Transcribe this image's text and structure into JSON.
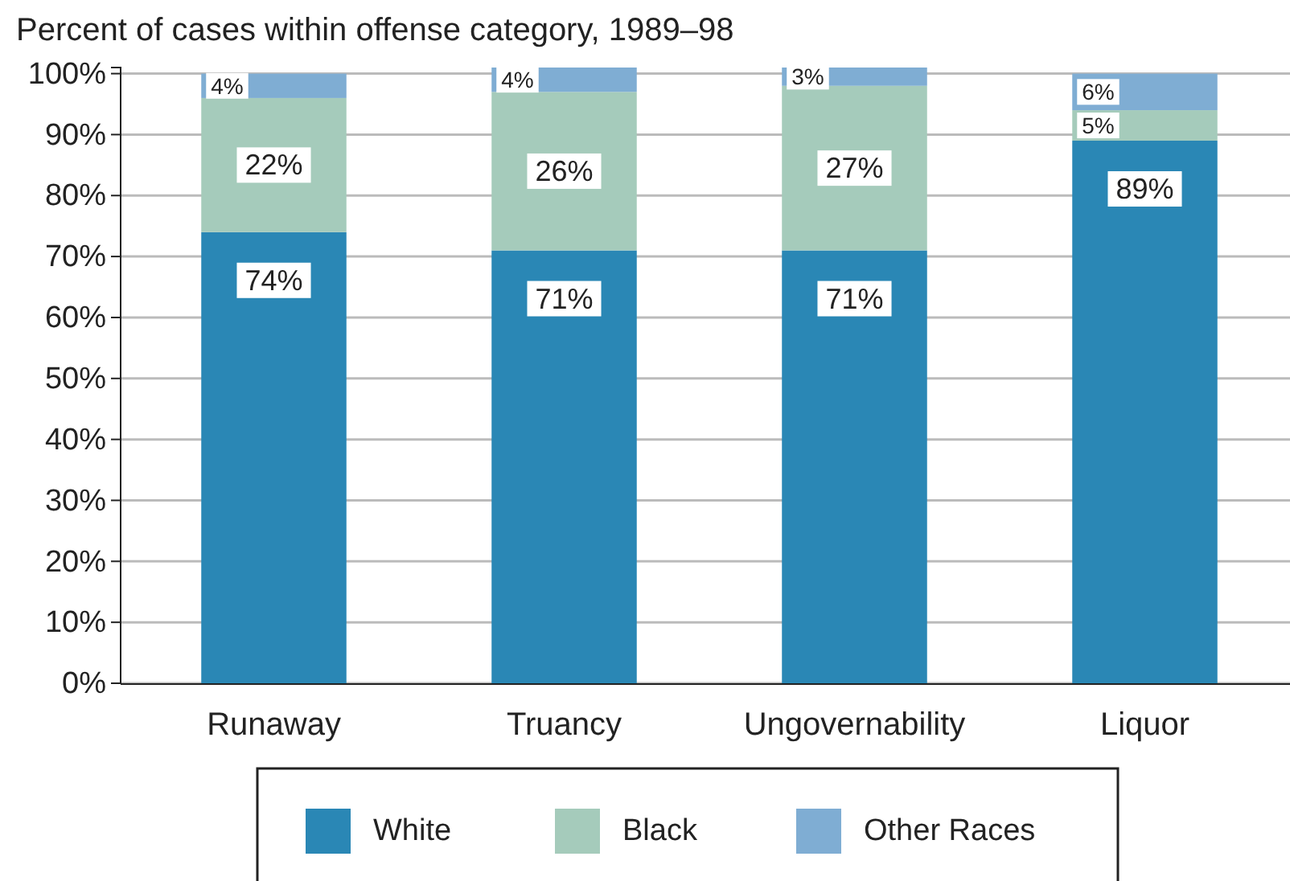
{
  "chart_data": {
    "type": "bar",
    "stacked": true,
    "title": "Percent of cases within offense category, 1989–98",
    "categories": [
      "Runaway",
      "Truancy",
      "Ungovernability",
      "Liquor"
    ],
    "series": [
      {
        "name": "White",
        "color": "#2a87b5",
        "values": [
          74,
          71,
          71,
          89
        ],
        "value_labels": [
          "74%",
          "71%",
          "71%",
          "89%"
        ]
      },
      {
        "name": "Black",
        "color": "#a5cbbb",
        "values": [
          22,
          26,
          27,
          5
        ],
        "value_labels": [
          "22%",
          "26%",
          "27%",
          "5%"
        ]
      },
      {
        "name": "Other Races",
        "color": "#7fadd3",
        "values": [
          4,
          4,
          3,
          6
        ],
        "value_labels": [
          "4%",
          "4%",
          "3%",
          "6%"
        ]
      }
    ],
    "ylim": [
      0,
      101
    ],
    "yticks": [
      {
        "value": 0,
        "label": "0%"
      },
      {
        "value": 10,
        "label": "10%"
      },
      {
        "value": 20,
        "label": "20%"
      },
      {
        "value": 30,
        "label": "30%"
      },
      {
        "value": 40,
        "label": "40%"
      },
      {
        "value": 50,
        "label": "50%"
      },
      {
        "value": 60,
        "label": "60%"
      },
      {
        "value": 70,
        "label": "70%"
      },
      {
        "value": 80,
        "label": "80%"
      },
      {
        "value": 90,
        "label": "90%"
      },
      {
        "value": 100,
        "label": "100%"
      }
    ],
    "grid": "y",
    "legend": "bottom"
  }
}
